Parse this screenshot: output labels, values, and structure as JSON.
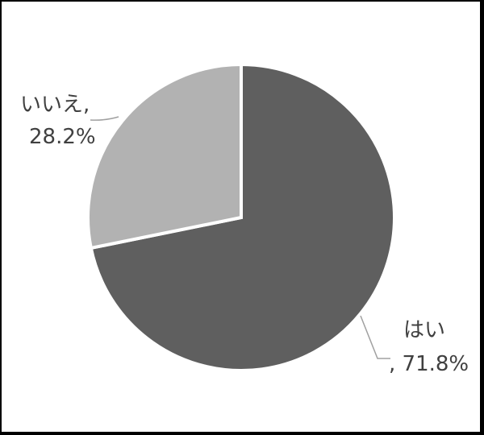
{
  "chart_data": {
    "type": "pie",
    "slices": [
      {
        "label": "はい",
        "value": 71.8,
        "value_label": "71.8%",
        "color": "#5f5f5f"
      },
      {
        "label": "いいえ",
        "value": 28.2,
        "value_label": "28.2%",
        "color": "#b2b2b2"
      }
    ],
    "start_angle": "12 o'clock",
    "direction": "clockwise",
    "data_labels": {
      "yes_line1": "はい",
      "yes_line2": ", 71.8%",
      "no_line1": "いいえ,",
      "no_line2": "28.2%"
    },
    "leader_line_color": "#a0a0a0",
    "slice_border_color": "#ffffff"
  }
}
